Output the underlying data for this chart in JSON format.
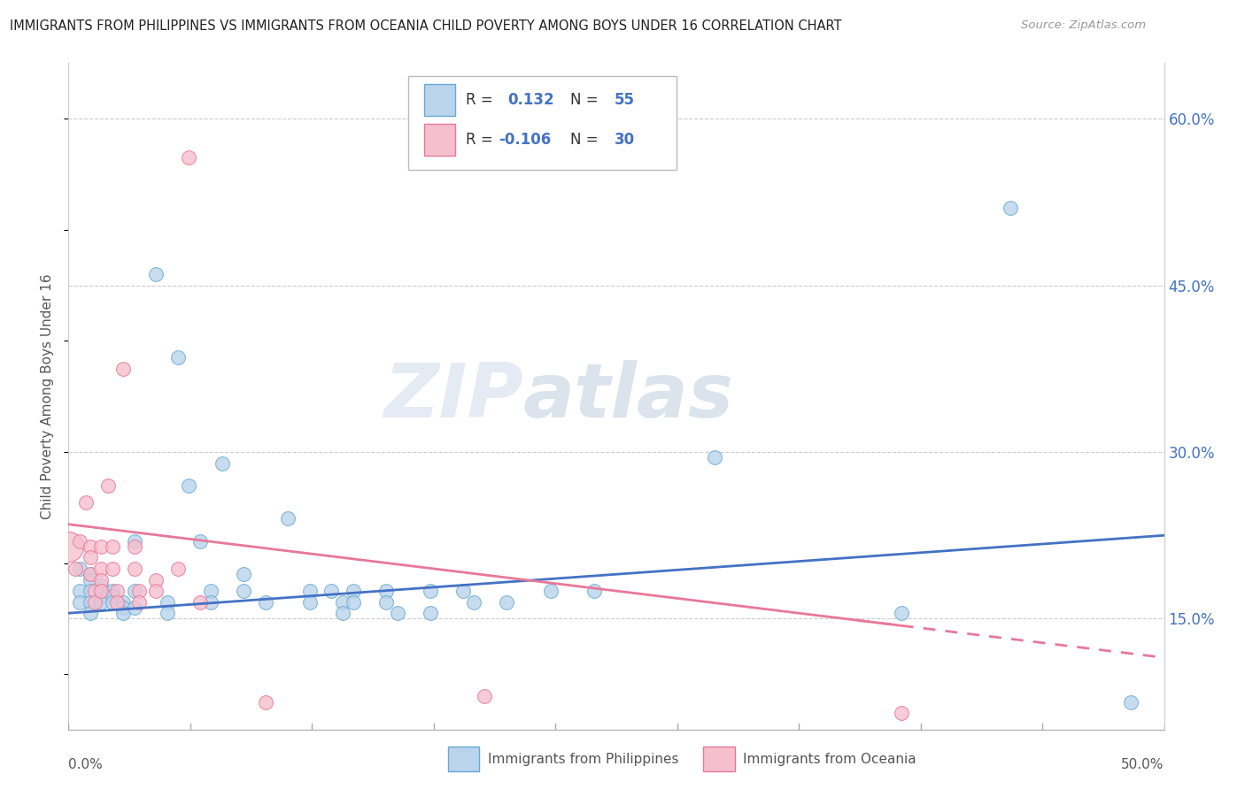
{
  "title": "IMMIGRANTS FROM PHILIPPINES VS IMMIGRANTS FROM OCEANIA CHILD POVERTY AMONG BOYS UNDER 16 CORRELATION CHART",
  "source": "Source: ZipAtlas.com",
  "ylabel": "Child Poverty Among Boys Under 16",
  "xmin": 0.0,
  "xmax": 0.5,
  "ymin": 0.05,
  "ymax": 0.65,
  "ytick_vals": [
    0.15,
    0.3,
    0.45,
    0.6
  ],
  "ytick_labels": [
    "15.0%",
    "30.0%",
    "45.0%",
    "60.0%"
  ],
  "xtick_labels": [
    "0.0%",
    "50.0%"
  ],
  "legend_r1": "R = ",
  "legend_v1": "0.132",
  "legend_n1_label": "N = ",
  "legend_n1": "55",
  "legend_r2": "R = ",
  "legend_v2": "-0.106",
  "legend_n2_label": "N = ",
  "legend_n2": "30",
  "philippines_color": "#bad4ec",
  "oceania_color": "#f5bfce",
  "philippines_edge_color": "#6aaad4",
  "oceania_edge_color": "#e8789a",
  "philippines_line_color": "#4472c4",
  "oceania_line_color": "#e8789a",
  "watermark_color": "#ccd8ea",
  "watermark_alpha": 0.5,
  "philippines_scatter": [
    [
      0.005,
      0.195
    ],
    [
      0.005,
      0.175
    ],
    [
      0.005,
      0.165
    ],
    [
      0.01,
      0.19
    ],
    [
      0.01,
      0.185
    ],
    [
      0.01,
      0.175
    ],
    [
      0.01,
      0.165
    ],
    [
      0.01,
      0.155
    ],
    [
      0.015,
      0.18
    ],
    [
      0.015,
      0.175
    ],
    [
      0.015,
      0.17
    ],
    [
      0.015,
      0.165
    ],
    [
      0.02,
      0.175
    ],
    [
      0.02,
      0.17
    ],
    [
      0.02,
      0.165
    ],
    [
      0.025,
      0.165
    ],
    [
      0.025,
      0.16
    ],
    [
      0.025,
      0.155
    ],
    [
      0.03,
      0.22
    ],
    [
      0.03,
      0.175
    ],
    [
      0.03,
      0.16
    ],
    [
      0.04,
      0.46
    ],
    [
      0.045,
      0.165
    ],
    [
      0.045,
      0.155
    ],
    [
      0.05,
      0.385
    ],
    [
      0.055,
      0.27
    ],
    [
      0.06,
      0.22
    ],
    [
      0.065,
      0.175
    ],
    [
      0.065,
      0.165
    ],
    [
      0.07,
      0.29
    ],
    [
      0.08,
      0.19
    ],
    [
      0.08,
      0.175
    ],
    [
      0.09,
      0.165
    ],
    [
      0.1,
      0.24
    ],
    [
      0.11,
      0.175
    ],
    [
      0.11,
      0.165
    ],
    [
      0.12,
      0.175
    ],
    [
      0.125,
      0.165
    ],
    [
      0.125,
      0.155
    ],
    [
      0.13,
      0.175
    ],
    [
      0.13,
      0.165
    ],
    [
      0.145,
      0.175
    ],
    [
      0.145,
      0.165
    ],
    [
      0.15,
      0.155
    ],
    [
      0.165,
      0.175
    ],
    [
      0.165,
      0.155
    ],
    [
      0.18,
      0.175
    ],
    [
      0.185,
      0.165
    ],
    [
      0.2,
      0.165
    ],
    [
      0.22,
      0.175
    ],
    [
      0.24,
      0.175
    ],
    [
      0.295,
      0.295
    ],
    [
      0.38,
      0.155
    ],
    [
      0.43,
      0.52
    ],
    [
      0.485,
      0.075
    ]
  ],
  "oceania_scatter": [
    [
      0.003,
      0.195
    ],
    [
      0.005,
      0.22
    ],
    [
      0.008,
      0.255
    ],
    [
      0.01,
      0.215
    ],
    [
      0.01,
      0.205
    ],
    [
      0.01,
      0.19
    ],
    [
      0.012,
      0.175
    ],
    [
      0.012,
      0.165
    ],
    [
      0.015,
      0.215
    ],
    [
      0.015,
      0.195
    ],
    [
      0.015,
      0.185
    ],
    [
      0.015,
      0.175
    ],
    [
      0.018,
      0.27
    ],
    [
      0.02,
      0.215
    ],
    [
      0.02,
      0.195
    ],
    [
      0.022,
      0.175
    ],
    [
      0.022,
      0.165
    ],
    [
      0.025,
      0.375
    ],
    [
      0.03,
      0.215
    ],
    [
      0.03,
      0.195
    ],
    [
      0.032,
      0.175
    ],
    [
      0.032,
      0.165
    ],
    [
      0.04,
      0.185
    ],
    [
      0.04,
      0.175
    ],
    [
      0.05,
      0.195
    ],
    [
      0.055,
      0.565
    ],
    [
      0.06,
      0.165
    ],
    [
      0.09,
      0.075
    ],
    [
      0.19,
      0.08
    ],
    [
      0.38,
      0.065
    ]
  ],
  "oceania_big_bubble": [
    0.0,
    0.215
  ],
  "phil_trend": [
    0.0,
    0.155,
    0.5,
    0.225
  ],
  "oce_trend": [
    0.0,
    0.235,
    0.5,
    0.115
  ]
}
